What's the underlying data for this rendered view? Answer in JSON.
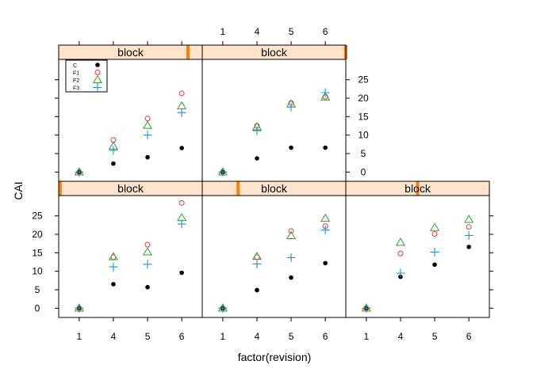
{
  "chart_data": {
    "type": "scatter",
    "xlabel": "factor(revision)",
    "ylabel": "CAI",
    "x_categories": [
      "1",
      "4",
      "5",
      "6"
    ],
    "ylim": [
      -2.5,
      30.5
    ],
    "y_ticks": [
      0,
      5,
      10,
      15,
      20,
      25
    ],
    "strip_label": "block",
    "legend": {
      "placement": "inside-top-left",
      "entries": [
        {
          "name": "C",
          "symbol": "filled-circle",
          "color": "#000000"
        },
        {
          "name": "F1",
          "symbol": "open-circle",
          "color": "#e8323e"
        },
        {
          "name": "F2",
          "symbol": "triangle",
          "color": "#2ca02c"
        },
        {
          "name": "F3",
          "symbol": "plus",
          "color": "#1f91d6"
        }
      ]
    },
    "panels": [
      {
        "strip": "block",
        "block_level": 0.9,
        "series": [
          {
            "name": "C",
            "values": [
              0,
              2.3,
              4.0,
              6.5
            ]
          },
          {
            "name": "F1",
            "values": [
              0,
              8.7,
              14.5,
              21.3
            ]
          },
          {
            "name": "F2",
            "values": [
              0,
              7.0,
              12.6,
              17.9
            ]
          },
          {
            "name": "F3",
            "values": [
              0,
              5.9,
              10.0,
              16.1
            ]
          }
        ]
      },
      {
        "strip": "block",
        "block_level": 1.0,
        "series": [
          {
            "name": "C",
            "values": [
              0,
              3.7,
              6.6,
              6.6
            ]
          },
          {
            "name": "F1",
            "values": [
              0,
              12.5,
              18.7,
              20.4
            ]
          },
          {
            "name": "F2",
            "values": [
              0,
              12.2,
              18.4,
              20.3
            ]
          },
          {
            "name": "F3",
            "values": [
              0,
              11.2,
              17.6,
              21.5
            ]
          }
        ]
      },
      {
        "strip": "block",
        "block_level": 0.01,
        "series": [
          {
            "name": "C",
            "values": [
              0,
              6.5,
              5.7,
              9.6
            ]
          },
          {
            "name": "F1",
            "values": [
              0,
              13.8,
              17.2,
              28.5
            ]
          },
          {
            "name": "F2",
            "values": [
              0,
              13.9,
              15.2,
              24.5
            ]
          },
          {
            "name": "F3",
            "values": [
              0,
              11.2,
              11.9,
              22.8
            ]
          }
        ]
      },
      {
        "strip": "block",
        "block_level": 0.25,
        "series": [
          {
            "name": "C",
            "values": [
              0,
              4.9,
              8.3,
              12.2
            ]
          },
          {
            "name": "F1",
            "values": [
              0,
              13.8,
              20.9,
              22.2
            ]
          },
          {
            "name": "F2",
            "values": [
              0,
              14.0,
              19.6,
              24.3
            ]
          },
          {
            "name": "F3",
            "values": [
              0,
              12.0,
              13.7,
              21.2
            ]
          }
        ]
      },
      {
        "strip": "block",
        "block_level": 0.5,
        "series": [
          {
            "name": "C",
            "values": [
              0,
              8.5,
              11.8,
              16.6
            ]
          },
          {
            "name": "F1",
            "values": [
              0,
              14.8,
              20.1,
              22.0
            ]
          },
          {
            "name": "F2",
            "values": [
              0,
              17.8,
              21.8,
              24.0
            ]
          },
          {
            "name": "F3",
            "values": [
              0,
              9.5,
              15.2,
              19.7
            ]
          }
        ]
      }
    ]
  }
}
